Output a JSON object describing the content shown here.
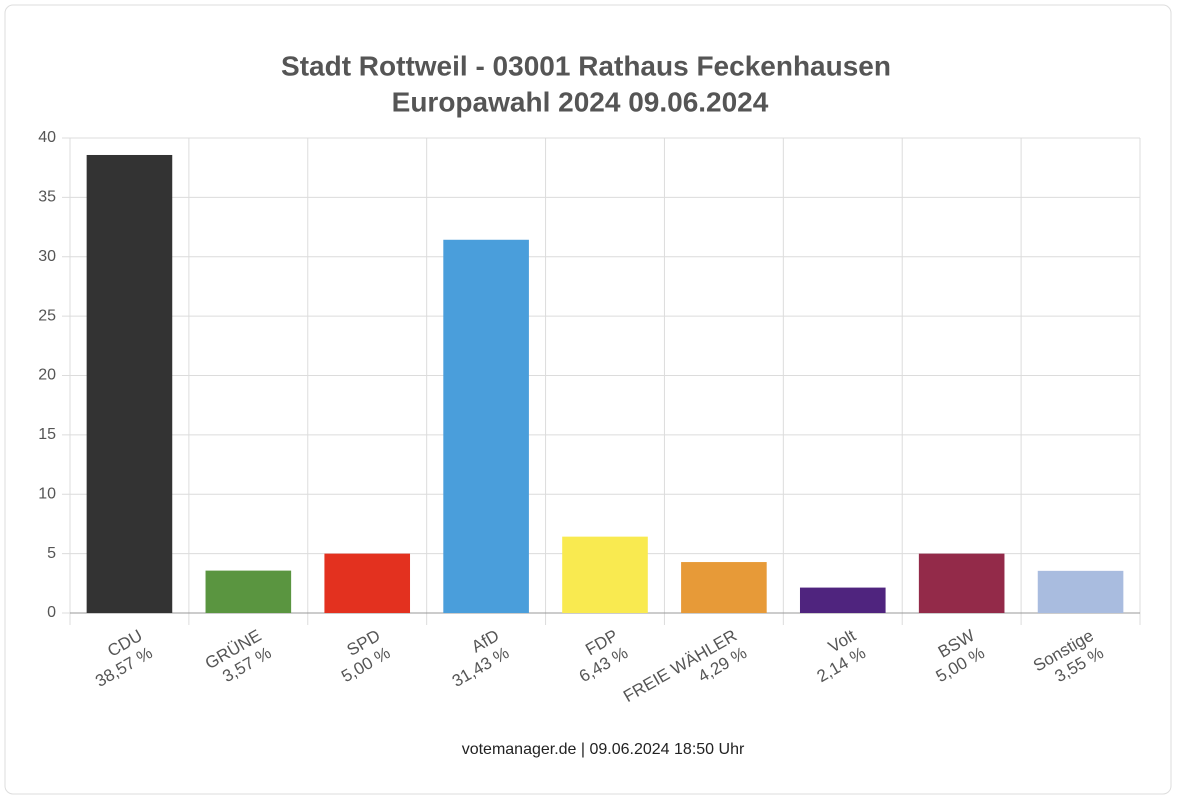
{
  "chart_data": {
    "type": "bar",
    "title": "Stadt Rottweil - 03001 Rathaus Feckenhausen",
    "subtitle": "Europawahl 2024 09.06.2024",
    "categories": [
      "CDU",
      "GRÜNE",
      "SPD",
      "AfD",
      "FDP",
      "FREIE WÄHLER",
      "Volt",
      "BSW",
      "Sonstige"
    ],
    "values": [
      38.57,
      3.57,
      5.0,
      31.43,
      6.43,
      4.29,
      2.14,
      5.0,
      3.55
    ],
    "value_labels": [
      "38,57 %",
      "3,57 %",
      "5,00 %",
      "31,43 %",
      "6,43 %",
      "4,29 %",
      "2,14 %",
      "5,00 %",
      "3,55 %"
    ],
    "colors": [
      "#333333",
      "#5a9540",
      "#e3311f",
      "#4a9edb",
      "#f9ea50",
      "#e79a38",
      "#4f247e",
      "#932a49",
      "#a9bcdf"
    ],
    "ylim": [
      0,
      40
    ],
    "yticks": [
      0,
      5,
      10,
      15,
      20,
      25,
      30,
      35,
      40
    ],
    "grid": true,
    "source": "votemanager.de | 09.06.2024 18:50 Uhr"
  }
}
